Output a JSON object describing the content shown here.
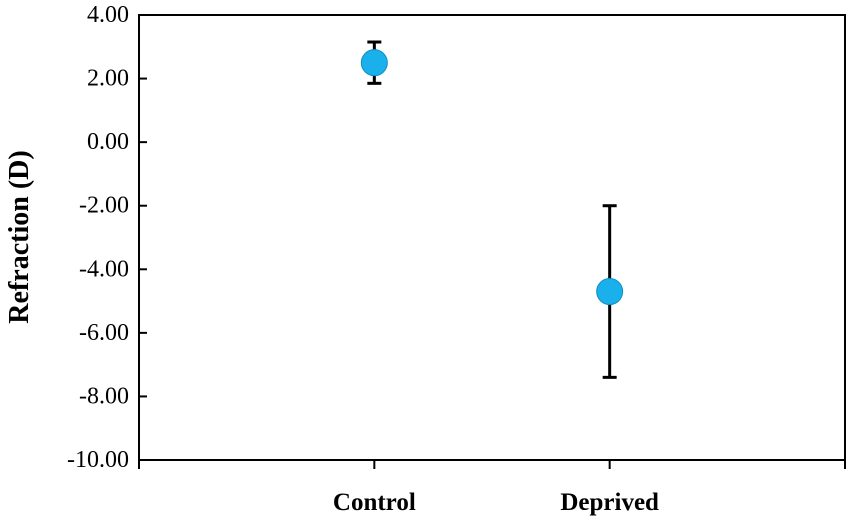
{
  "chart_data": {
    "type": "scatter",
    "title": "",
    "xlabel": "",
    "ylabel": "Refraction (D)",
    "categories": [
      "Control",
      "Deprived"
    ],
    "values": [
      2.5,
      -4.7
    ],
    "error_bars": [
      {
        "low": 1.85,
        "high": 3.15
      },
      {
        "low": -7.4,
        "high": -2.0
      }
    ],
    "ylim": [
      -10.0,
      4.0
    ],
    "yticks": [
      4.0,
      2.0,
      0.0,
      -2.0,
      -4.0,
      -6.0,
      -8.0,
      -10.0
    ],
    "ytick_labels": [
      "4.00",
      "2.00",
      "0.00",
      "-2.00",
      "-4.00",
      "-6.00",
      "-8.00",
      "-10.00"
    ],
    "marker_color": "#1AB0EC",
    "grid": false,
    "legend": false
  }
}
